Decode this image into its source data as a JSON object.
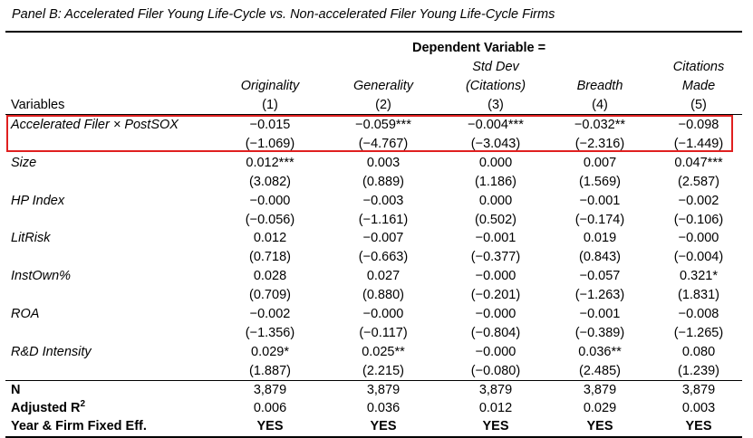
{
  "panel_title": "Panel B: Accelerated Filer Young Life-Cycle vs. Non-accelerated Filer Young Life-Cycle Firms",
  "header": {
    "dependent_variable": "Dependent Variable =",
    "variables_label": "Variables",
    "columns": [
      {
        "line1": "",
        "line2": "Originality",
        "num": "(1)"
      },
      {
        "line1": "",
        "line2": "Generality",
        "num": "(2)"
      },
      {
        "line1": "Std Dev",
        "line2": "(Citations)",
        "num": "(3)"
      },
      {
        "line1": "",
        "line2": "Breadth",
        "num": "(4)"
      },
      {
        "line1": "Citations",
        "line2": "Made",
        "num": "(5)"
      }
    ]
  },
  "rows": [
    {
      "label": "Accelerated Filer × PostSOX",
      "coef": [
        "−0.015",
        "−0.059***",
        "−0.004***",
        "−0.032**",
        "−0.098"
      ],
      "t": [
        "(−1.069)",
        "(−4.767)",
        "(−3.043)",
        "(−2.316)",
        "(−1.449)"
      ]
    },
    {
      "label": "Size",
      "coef": [
        "0.012***",
        "0.003",
        "0.000",
        "0.007",
        "0.047***"
      ],
      "t": [
        "(3.082)",
        "(0.889)",
        "(1.186)",
        "(1.569)",
        "(2.587)"
      ]
    },
    {
      "label": "HP Index",
      "coef": [
        "−0.000",
        "−0.003",
        "0.000",
        "−0.001",
        "−0.002"
      ],
      "t": [
        "(−0.056)",
        "(−1.161)",
        "(0.502)",
        "(−0.174)",
        "(−0.106)"
      ]
    },
    {
      "label": "LitRisk",
      "coef": [
        "0.012",
        "−0.007",
        "−0.001",
        "0.019",
        "−0.000"
      ],
      "t": [
        "(0.718)",
        "(−0.663)",
        "(−0.377)",
        "(0.843)",
        "(−0.004)"
      ]
    },
    {
      "label": "InstOwn%",
      "coef": [
        "0.028",
        "0.027",
        "−0.000",
        "−0.057",
        "0.321*"
      ],
      "t": [
        "(0.709)",
        "(0.880)",
        "(−0.201)",
        "(−1.263)",
        "(1.831)"
      ]
    },
    {
      "label": "ROA",
      "coef": [
        "−0.002",
        "−0.000",
        "−0.000",
        "−0.001",
        "−0.008"
      ],
      "t": [
        "(−1.356)",
        "(−0.117)",
        "(−0.804)",
        "(−0.389)",
        "(−1.265)"
      ]
    },
    {
      "label": "R&D Intensity",
      "coef": [
        "0.029*",
        "0.025**",
        "−0.000",
        "0.036**",
        "0.080"
      ],
      "t": [
        "(1.887)",
        "(2.215)",
        "(−0.080)",
        "(2.485)",
        "(1.239)"
      ]
    }
  ],
  "footer": [
    {
      "label": "N",
      "values": [
        "3,879",
        "3,879",
        "3,879",
        "3,879",
        "3,879"
      ]
    },
    {
      "label": "Adjusted R",
      "sup": "2",
      "values": [
        "0.006",
        "0.036",
        "0.012",
        "0.029",
        "0.003"
      ]
    },
    {
      "label": "Year & Firm Fixed Eff.",
      "values": [
        "YES",
        "YES",
        "YES",
        "YES",
        "YES"
      ]
    }
  ],
  "highlight_color": "#e02020"
}
